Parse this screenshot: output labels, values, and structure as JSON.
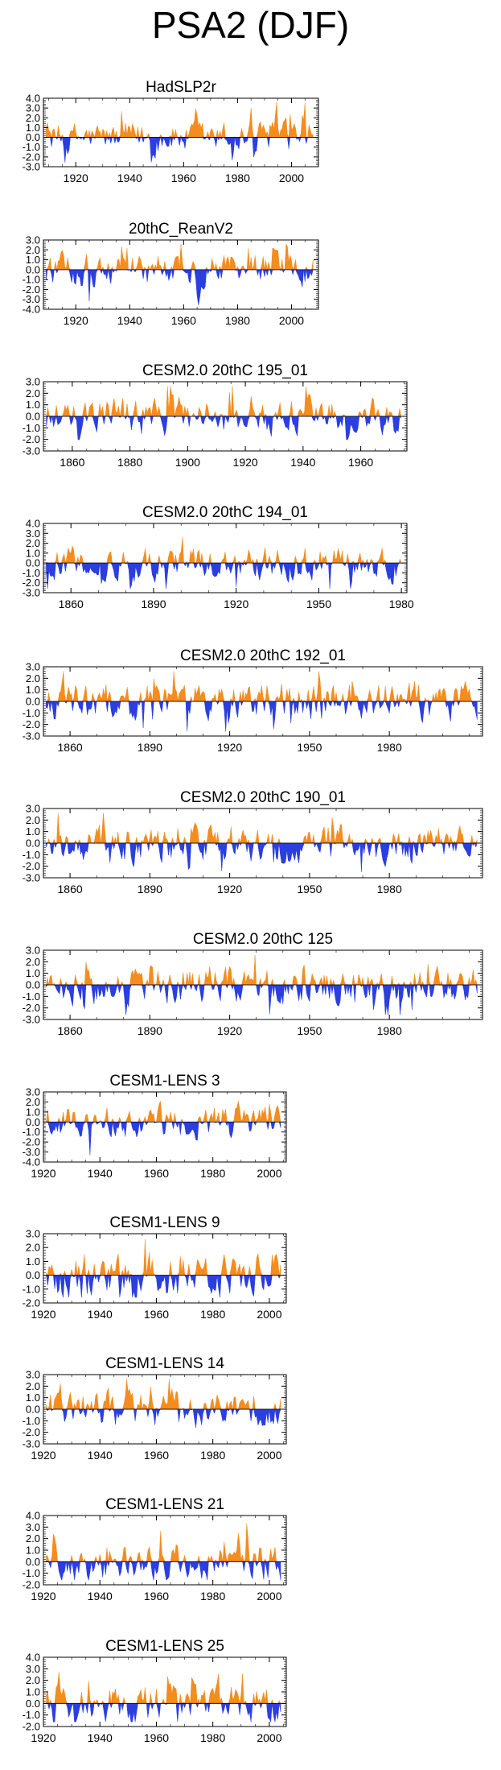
{
  "figure": {
    "title": "PSA2 (DJF)"
  },
  "colors": {
    "positive": "#f48c1e",
    "negative": "#2b3ee0",
    "axis": "#000000"
  },
  "chart_data": [
    {
      "type": "area",
      "title": "HadSLP2r",
      "xlim": [
        1908,
        2010
      ],
      "ylim": [
        -3.0,
        4.0
      ],
      "yticks": [
        4.0,
        3.0,
        2.0,
        1.0,
        0.0,
        -1.0,
        -2.0,
        -3.0
      ],
      "yticklabels": [
        "4.0",
        "3.0",
        "2.0",
        "1.0",
        "0.0",
        "-1.0",
        "-2.0",
        "-3.0"
      ],
      "xticks": [
        1920,
        1940,
        1960,
        1980,
        2000
      ],
      "xticklabels": [
        "1920",
        "1940",
        "1960",
        "1980",
        "2000"
      ]
    },
    {
      "type": "area",
      "title": "20thC_ReanV2",
      "xlim": [
        1908,
        2010
      ],
      "ylim": [
        -4.0,
        3.0
      ],
      "yticks": [
        3.0,
        2.0,
        1.0,
        0.0,
        -1.0,
        -2.0,
        -3.0,
        -4.0
      ],
      "yticklabels": [
        "3.0",
        "2.0",
        "1.0",
        "0.0",
        "-1.0",
        "-2.0",
        "-3.0",
        "-4.0"
      ],
      "xticks": [
        1920,
        1940,
        1960,
        1980,
        2000
      ],
      "xticklabels": [
        "1920",
        "1940",
        "1960",
        "1980",
        "2000"
      ]
    },
    {
      "type": "area",
      "title": "CESM2.0 20thC 195_01",
      "xlim": [
        1850,
        1976
      ],
      "ylim": [
        -3.0,
        3.0
      ],
      "yticks": [
        3.0,
        2.0,
        1.0,
        0.0,
        -1.0,
        -2.0,
        -3.0
      ],
      "yticklabels": [
        "3.0",
        "2.0",
        "1.0",
        "0.0",
        "-1.0",
        "-2.0",
        "-3.0"
      ],
      "xticks": [
        1860,
        1880,
        1900,
        1920,
        1940,
        1960
      ],
      "xticklabels": [
        "1860",
        "1880",
        "1900",
        "1920",
        "1940",
        "1960"
      ]
    },
    {
      "type": "area",
      "title": "CESM2.0 20thC 194_01",
      "xlim": [
        1850,
        1982
      ],
      "ylim": [
        -3.0,
        4.0
      ],
      "yticks": [
        4.0,
        3.0,
        2.0,
        1.0,
        0.0,
        -1.0,
        -2.0,
        -3.0
      ],
      "yticklabels": [
        "4.0",
        "3.0",
        "2.0",
        "1.0",
        "0.0",
        "-1.0",
        "-2.0",
        "-3.0"
      ],
      "xticks": [
        1860,
        1890,
        1920,
        1950,
        1980
      ],
      "xticklabels": [
        "1860",
        "1890",
        "1920",
        "1950",
        "1980"
      ]
    },
    {
      "type": "area",
      "title": "CESM2.0 20thC 192_01",
      "xlim": [
        1850,
        2015
      ],
      "ylim": [
        -3.0,
        3.0
      ],
      "yticks": [
        3.0,
        2.0,
        1.0,
        0.0,
        -1.0,
        -2.0,
        -3.0
      ],
      "yticklabels": [
        "3.0",
        "2.0",
        "1.0",
        "0.0",
        "-1.0",
        "-2.0",
        "-3.0"
      ],
      "xticks": [
        1860,
        1890,
        1920,
        1950,
        1980
      ],
      "xticklabels": [
        "1860",
        "1890",
        "1920",
        "1950",
        "1980"
      ]
    },
    {
      "type": "area",
      "title": "CESM2.0 20thC 190_01",
      "xlim": [
        1850,
        2015
      ],
      "ylim": [
        -3.0,
        3.0
      ],
      "yticks": [
        3.0,
        2.0,
        1.0,
        0.0,
        -1.0,
        -2.0,
        -3.0
      ],
      "yticklabels": [
        "3.0",
        "2.0",
        "1.0",
        "0.0",
        "-1.0",
        "-2.0",
        "-3.0"
      ],
      "xticks": [
        1860,
        1890,
        1920,
        1950,
        1980
      ],
      "xticklabels": [
        "1860",
        "1890",
        "1920",
        "1950",
        "1980"
      ]
    },
    {
      "type": "area",
      "title": "CESM2.0 20thC 125",
      "xlim": [
        1850,
        2015
      ],
      "ylim": [
        -3.0,
        3.0
      ],
      "yticks": [
        3.0,
        2.0,
        1.0,
        0.0,
        -1.0,
        -2.0,
        -3.0
      ],
      "yticklabels": [
        "3.0",
        "2.0",
        "1.0",
        "0.0",
        "-1.0",
        "-2.0",
        "-3.0"
      ],
      "xticks": [
        1860,
        1890,
        1920,
        1950,
        1980
      ],
      "xticklabels": [
        "1860",
        "1890",
        "1920",
        "1950",
        "1980"
      ]
    },
    {
      "type": "area",
      "title": "CESM1-LENS 3",
      "xlim": [
        1920,
        2006
      ],
      "ylim": [
        -4.0,
        3.0
      ],
      "yticks": [
        3.0,
        2.0,
        1.0,
        0.0,
        -1.0,
        -2.0,
        -3.0,
        -4.0
      ],
      "yticklabels": [
        "3.0",
        "2.0",
        "1.0",
        "0.0",
        "-1.0",
        "-2.0",
        "-3.0",
        "-4.0"
      ],
      "xticks": [
        1920,
        1940,
        1960,
        1980,
        2000
      ],
      "xticklabels": [
        "1920",
        "1940",
        "1960",
        "1980",
        "2000"
      ]
    },
    {
      "type": "area",
      "title": "CESM1-LENS 9",
      "xlim": [
        1920,
        2006
      ],
      "ylim": [
        -2.0,
        3.0
      ],
      "yticks": [
        3.0,
        2.0,
        1.0,
        0.0,
        -1.0,
        -2.0
      ],
      "yticklabels": [
        "3.0",
        "2.0",
        "1.0",
        "0.0",
        "-1.0",
        "-2.0"
      ],
      "xticks": [
        1920,
        1940,
        1960,
        1980,
        2000
      ],
      "xticklabels": [
        "1920",
        "1940",
        "1960",
        "1980",
        "2000"
      ]
    },
    {
      "type": "area",
      "title": "CESM1-LENS 14",
      "xlim": [
        1920,
        2006
      ],
      "ylim": [
        -3.0,
        3.0
      ],
      "yticks": [
        3.0,
        2.0,
        1.0,
        0.0,
        -1.0,
        -2.0,
        -3.0
      ],
      "yticklabels": [
        "3.0",
        "2.0",
        "1.0",
        "0.0",
        "-1.0",
        "-2.0",
        "-3.0"
      ],
      "xticks": [
        1920,
        1940,
        1960,
        1980,
        2000
      ],
      "xticklabels": [
        "1920",
        "1940",
        "1960",
        "1980",
        "2000"
      ]
    },
    {
      "type": "area",
      "title": "CESM1-LENS 21",
      "xlim": [
        1920,
        2006
      ],
      "ylim": [
        -2.0,
        4.0
      ],
      "yticks": [
        4.0,
        3.0,
        2.0,
        1.0,
        0.0,
        -1.0,
        -2.0
      ],
      "yticklabels": [
        "4.0",
        "3.0",
        "2.0",
        "1.0",
        "0.0",
        "-1.0",
        "-2.0"
      ],
      "xticks": [
        1920,
        1940,
        1960,
        1980,
        2000
      ],
      "xticklabels": [
        "1920",
        "1940",
        "1960",
        "1980",
        "2000"
      ]
    },
    {
      "type": "area",
      "title": "CESM1-LENS 25",
      "xlim": [
        1920,
        2006
      ],
      "ylim": [
        -2.0,
        4.0
      ],
      "yticks": [
        4.0,
        3.0,
        2.0,
        1.0,
        0.0,
        -1.0,
        -2.0
      ],
      "yticklabels": [
        "4.0",
        "3.0",
        "2.0",
        "1.0",
        "0.0",
        "-1.0",
        "-2.0"
      ],
      "xticks": [
        1920,
        1940,
        1960,
        1980,
        2000
      ],
      "xticklabels": [
        "1920",
        "1940",
        "1960",
        "1980",
        "2000"
      ]
    }
  ]
}
